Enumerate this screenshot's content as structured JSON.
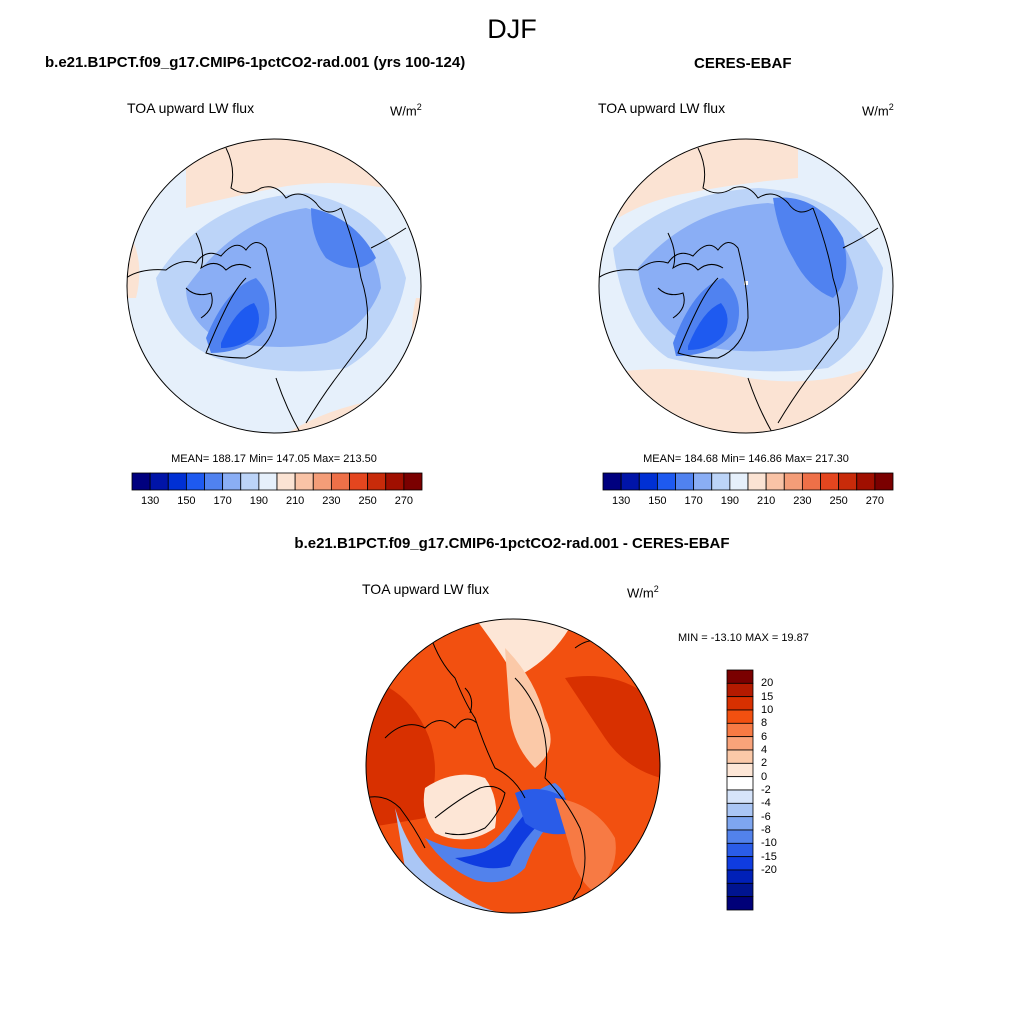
{
  "title": "DJF",
  "left_panel": {
    "title": "b.e21.B1PCT.f09_g17.CMIP6-1pctCO2-rad.001 (yrs 100-124)",
    "variable": "TOA upward LW flux",
    "units_base": "W/m",
    "units_exp": "2",
    "stats": "MEAN= 188.17  Min= 147.05  Max= 213.50"
  },
  "right_panel": {
    "title": "CERES-EBAF",
    "variable": "TOA upward LW flux",
    "units_base": "W/m",
    "units_exp": "2",
    "stats": "MEAN= 184.68  Min= 146.86  Max= 217.30"
  },
  "diff_panel": {
    "title": "b.e21.B1PCT.f09_g17.CMIP6-1pctCO2-rad.001 - CERES-EBAF",
    "variable": "TOA upward LW flux",
    "units_base": "W/m",
    "units_exp": "2",
    "stats": "MIN = -13.10 MAX =  19.87"
  },
  "colorbar_abs": {
    "colors": [
      "#00007f",
      "#0014a8",
      "#0030d4",
      "#1e5af0",
      "#5082f0",
      "#8aaef5",
      "#bcd4f8",
      "#e6f0fb",
      "#fbe3d3",
      "#f9c3a6",
      "#f49d78",
      "#ee7048",
      "#e4461f",
      "#c82b0a",
      "#a00f00",
      "#7a0000"
    ],
    "labels": [
      "130",
      "150",
      "170",
      "190",
      "210",
      "230",
      "250",
      "270"
    ]
  },
  "colorbar_diff": {
    "colors": [
      "#7a0000",
      "#b41a00",
      "#d83000",
      "#f25010",
      "#f77a44",
      "#f9a37a",
      "#fbc9a8",
      "#fde6d6",
      "#ffffff",
      "#d6e4fa",
      "#aac6f5",
      "#7ea6f0",
      "#5282ec",
      "#2a5ce8",
      "#0f3ce0",
      "#0020b8",
      "#001490",
      "#000078"
    ],
    "labels": [
      "20",
      "15",
      "10",
      "8",
      "6",
      "4",
      "2",
      "0",
      "-2",
      "-4",
      "-6",
      "-8",
      "-10",
      "-15",
      "-20"
    ]
  }
}
